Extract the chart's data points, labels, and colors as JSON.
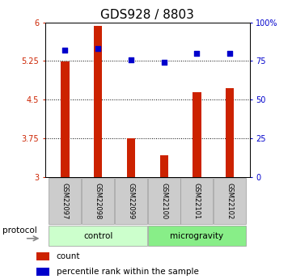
{
  "title": "GDS928 / 8803",
  "samples": [
    "GSM22097",
    "GSM22098",
    "GSM22099",
    "GSM22100",
    "GSM22101",
    "GSM22102"
  ],
  "count_values": [
    5.24,
    5.93,
    3.76,
    3.42,
    4.65,
    4.72
  ],
  "percentile_values": [
    82,
    83,
    76,
    74,
    80,
    80
  ],
  "ylim_left": [
    3,
    6
  ],
  "ylim_right": [
    0,
    100
  ],
  "yticks_left": [
    3,
    3.75,
    4.5,
    5.25,
    6
  ],
  "yticks_right": [
    0,
    25,
    50,
    75,
    100
  ],
  "bar_color": "#cc2200",
  "dot_color": "#0000cc",
  "bar_bottom": 3,
  "groups": [
    {
      "label": "control",
      "color": "#ccffcc"
    },
    {
      "label": "microgravity",
      "color": "#88ee88"
    }
  ],
  "protocol_label": "protocol",
  "legend_count_label": "count",
  "legend_percentile_label": "percentile rank within the sample",
  "title_fontsize": 11,
  "tick_fontsize": 7,
  "label_fontsize": 8,
  "bg_color": "#ffffff",
  "plot_bg": "#ffffff",
  "tick_label_color_left": "#cc2200",
  "tick_label_color_right": "#0000cc"
}
